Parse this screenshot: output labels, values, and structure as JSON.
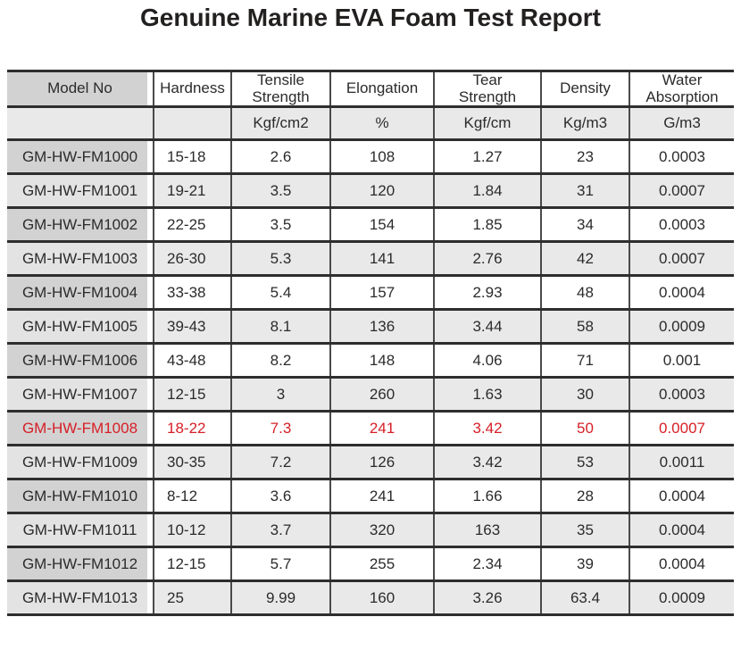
{
  "title": "Genuine Marine EVA Foam Test Report",
  "colors": {
    "highlight_text": "#d62027",
    "model_column_gray": "#d2d2d2",
    "stripe_gray": "#e9e9e9",
    "border_dark": "#2e2e2e"
  },
  "table": {
    "columns": [
      "Model No",
      "Hardness",
      "Tensile\nStrength",
      "Elongation",
      "Tear\nStrength",
      "Density",
      "Water\nAbsorption"
    ],
    "units": [
      "",
      "",
      "Kgf/cm2",
      "%",
      "Kgf/cm",
      "Kg/m3",
      "G/m3"
    ],
    "rows": [
      {
        "model": "GM-HW-FM1000",
        "hardness": "15-18",
        "tensile": "2.6",
        "elongation": "108",
        "tear": "1.27",
        "density": "23",
        "water": "0.0003",
        "highlight": false
      },
      {
        "model": "GM-HW-FM1001",
        "hardness": "19-21",
        "tensile": "3.5",
        "elongation": "120",
        "tear": "1.84",
        "density": "31",
        "water": "0.0007",
        "highlight": false
      },
      {
        "model": "GM-HW-FM1002",
        "hardness": "22-25",
        "tensile": "3.5",
        "elongation": "154",
        "tear": "1.85",
        "density": "34",
        "water": "0.0003",
        "highlight": false
      },
      {
        "model": "GM-HW-FM1003",
        "hardness": "26-30",
        "tensile": "5.3",
        "elongation": "141",
        "tear": "2.76",
        "density": "42",
        "water": "0.0007",
        "highlight": false
      },
      {
        "model": "GM-HW-FM1004",
        "hardness": "33-38",
        "tensile": "5.4",
        "elongation": "157",
        "tear": "2.93",
        "density": "48",
        "water": "0.0004",
        "highlight": false
      },
      {
        "model": "GM-HW-FM1005",
        "hardness": "39-43",
        "tensile": "8.1",
        "elongation": "136",
        "tear": "3.44",
        "density": "58",
        "water": "0.0009",
        "highlight": false
      },
      {
        "model": "GM-HW-FM1006",
        "hardness": "43-48",
        "tensile": "8.2",
        "elongation": "148",
        "tear": "4.06",
        "density": "71",
        "water": "0.001",
        "highlight": false
      },
      {
        "model": "GM-HW-FM1007",
        "hardness": "12-15",
        "tensile": "3",
        "elongation": "260",
        "tear": "1.63",
        "density": "30",
        "water": "0.0003",
        "highlight": false
      },
      {
        "model": "GM-HW-FM1008",
        "hardness": "18-22",
        "tensile": "7.3",
        "elongation": "241",
        "tear": "3.42",
        "density": "50",
        "water": "0.0007",
        "highlight": true
      },
      {
        "model": "GM-HW-FM1009",
        "hardness": "30-35",
        "tensile": "7.2",
        "elongation": "126",
        "tear": "3.42",
        "density": "53",
        "water": "0.0011",
        "highlight": false
      },
      {
        "model": "GM-HW-FM1010",
        "hardness": "8-12",
        "tensile": "3.6",
        "elongation": "241",
        "tear": "1.66",
        "density": "28",
        "water": "0.0004",
        "highlight": false
      },
      {
        "model": "GM-HW-FM1011",
        "hardness": "10-12",
        "tensile": "3.7",
        "elongation": "320",
        "tear": "163",
        "density": "35",
        "water": "0.0004",
        "highlight": false
      },
      {
        "model": "GM-HW-FM1012",
        "hardness": "12-15",
        "tensile": "5.7",
        "elongation": "255",
        "tear": "2.34",
        "density": "39",
        "water": "0.0004",
        "highlight": false
      },
      {
        "model": "GM-HW-FM1013",
        "hardness": "25",
        "tensile": "9.99",
        "elongation": "160",
        "tear": "3.26",
        "density": "63.4",
        "water": "0.0009",
        "highlight": false
      }
    ]
  }
}
